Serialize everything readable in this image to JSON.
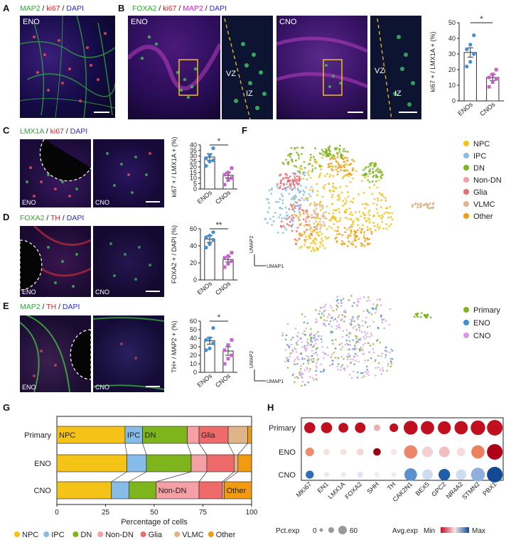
{
  "panels": {
    "A": {
      "label": "A",
      "stain": [
        {
          "t": "MAP2",
          "c": "#2bb02b"
        },
        {
          "t": " / ",
          "c": "#111"
        },
        {
          "t": "ki67",
          "c": "#e02020"
        },
        {
          "t": " / ",
          "c": "#111"
        },
        {
          "t": "DAPI",
          "c": "#2a2ad8"
        }
      ],
      "img_tag": "ENO"
    },
    "B": {
      "label": "B",
      "stain": [
        {
          "t": "FOXA2",
          "c": "#2bb02b"
        },
        {
          "t": " / ",
          "c": "#111"
        },
        {
          "t": "ki67",
          "c": "#e02020"
        },
        {
          "t": " / ",
          "c": "#111"
        },
        {
          "t": "MAP2",
          "c": "#d020d0"
        },
        {
          "t": " / ",
          "c": "#111"
        },
        {
          "t": "DAPI",
          "c": "#2a2ad8"
        }
      ],
      "img_tags": [
        "ENO",
        "CNO"
      ],
      "zones": [
        "VZ",
        "IZ"
      ]
    },
    "C": {
      "label": "C",
      "stain": [
        {
          "t": "LMX1A",
          "c": "#2bb02b"
        },
        {
          "t": " / ",
          "c": "#111"
        },
        {
          "t": "ki67",
          "c": "#e02020"
        },
        {
          "t": " / ",
          "c": "#111"
        },
        {
          "t": "DAPI",
          "c": "#2a2ad8"
        }
      ],
      "img_tags": [
        "ENO",
        "CNO"
      ]
    },
    "D": {
      "label": "D",
      "stain": [
        {
          "t": "FOXA2",
          "c": "#2bb02b"
        },
        {
          "t": " / ",
          "c": "#111"
        },
        {
          "t": "TH",
          "c": "#e02020"
        },
        {
          "t": " / ",
          "c": "#111"
        },
        {
          "t": "DAPI",
          "c": "#2a2ad8"
        }
      ],
      "img_tags": [
        "ENO",
        "CNO"
      ]
    },
    "E": {
      "label": "E",
      "stain": [
        {
          "t": "MAP2",
          "c": "#2bb02b"
        },
        {
          "t": " / ",
          "c": "#111"
        },
        {
          "t": "TH",
          "c": "#e02020"
        },
        {
          "t": " / ",
          "c": "#111"
        },
        {
          "t": "DAPI",
          "c": "#2a2ad8"
        }
      ],
      "img_tags": [
        "ENO",
        "CNO"
      ]
    },
    "F": {
      "label": "F",
      "umap_x": "UMAP1",
      "umap_y": "UMAP2"
    },
    "G": {
      "label": "G"
    },
    "H": {
      "label": "H"
    }
  },
  "chart_data": [
    {
      "id": "B",
      "type": "bar",
      "categories": [
        "ENOs",
        "CNOs"
      ],
      "ylabel": "ki67 + / LMX1A + (%)",
      "ylim": [
        0,
        50
      ],
      "yticks": [
        0,
        10,
        20,
        30,
        40,
        50
      ],
      "values": [
        31,
        15
      ],
      "errors": [
        3,
        2
      ],
      "points": [
        [
          22,
          25,
          30,
          33,
          36,
          42
        ],
        [
          9,
          12,
          14,
          15,
          17,
          20
        ]
      ],
      "sig": "*",
      "colors": [
        "#3d8fd6",
        "#c85fcf"
      ]
    },
    {
      "id": "C",
      "type": "bar",
      "categories": [
        "ENOs",
        "CNOs"
      ],
      "ylabel": "ki67 + / LMX1A + (%)",
      "ylim": [
        0,
        40
      ],
      "yticks": [
        0,
        5,
        10,
        15,
        20,
        25,
        30,
        35,
        40
      ],
      "values": [
        29,
        12.5
      ],
      "errors": [
        3,
        2.5
      ],
      "points": [
        [
          21,
          25,
          26,
          28,
          31,
          37
        ],
        [
          4,
          8,
          10,
          13,
          15,
          19
        ]
      ],
      "sig": "*",
      "colors": [
        "#3d8fd6",
        "#c85fcf"
      ]
    },
    {
      "id": "D",
      "type": "bar",
      "categories": [
        "ENOs",
        "CNOs"
      ],
      "ylabel": "FOXA2 + / DAPI (%)",
      "ylim": [
        0,
        60
      ],
      "yticks": [
        0,
        20,
        40,
        60
      ],
      "values": [
        48,
        24
      ],
      "errors": [
        4,
        3
      ],
      "points": [
        [
          38,
          42,
          47,
          50,
          52,
          56
        ],
        [
          15,
          19,
          22,
          26,
          28,
          32
        ]
      ],
      "sig": "**",
      "colors": [
        "#3d8fd6",
        "#c85fcf"
      ]
    },
    {
      "id": "E",
      "type": "bar",
      "categories": [
        "ENOs",
        "CNOs"
      ],
      "ylabel": "TH+ / MAP2 + (%)",
      "ylim": [
        0,
        60
      ],
      "yticks": [
        0,
        10,
        20,
        30,
        40,
        50,
        60
      ],
      "values": [
        37,
        25
      ],
      "errors": [
        4,
        5
      ],
      "points": [
        [
          26,
          28,
          34,
          38,
          40,
          52
        ],
        [
          10,
          16,
          20,
          26,
          32,
          38
        ]
      ],
      "sig": "*",
      "colors": [
        "#3d8fd6",
        "#c85fcf"
      ]
    },
    {
      "id": "F-top",
      "type": "scatter",
      "legend": [
        {
          "name": "NPC",
          "color": "#f5c218"
        },
        {
          "name": "IPC",
          "color": "#86bce8"
        },
        {
          "name": "DN",
          "color": "#7fb51c"
        },
        {
          "name": "Non-DN",
          "color": "#f4a0a4"
        },
        {
          "name": "Glia",
          "color": "#ef6a6a"
        },
        {
          "name": "VLMC",
          "color": "#e0b489"
        },
        {
          "name": "Other",
          "color": "#f29a10"
        }
      ]
    },
    {
      "id": "F-bottom",
      "type": "scatter",
      "legend": [
        {
          "name": "Primary",
          "color": "#7fb51c"
        },
        {
          "name": "ENO",
          "color": "#3d8fd6"
        },
        {
          "name": "CNO",
          "color": "#d59ae0"
        }
      ]
    },
    {
      "id": "G",
      "type": "bar",
      "orientation": "horizontal-stacked",
      "xlabel": "Percentage of cells",
      "xlim": [
        0,
        100
      ],
      "xticks": [
        0,
        25,
        50,
        75,
        100
      ],
      "categories": [
        "Primary",
        "ENO",
        "CNO"
      ],
      "series": [
        {
          "name": "NPC",
          "color": "#f5c218",
          "values": [
            35,
            36,
            28
          ]
        },
        {
          "name": "IPC",
          "color": "#86bce8",
          "values": [
            9,
            10,
            9
          ]
        },
        {
          "name": "DN",
          "color": "#7fb51c",
          "values": [
            23,
            23,
            14
          ]
        },
        {
          "name": "Non-DN",
          "color": "#f4a0a4",
          "values": [
            6,
            8,
            22
          ]
        },
        {
          "name": "Glia",
          "color": "#ef6a6a",
          "values": [
            15,
            14,
            12
          ]
        },
        {
          "name": "VLMC",
          "color": "#e0b489",
          "values": [
            10,
            2,
            1
          ]
        },
        {
          "name": "Other",
          "color": "#f29a10",
          "values": [
            2,
            7,
            14
          ]
        }
      ],
      "inbar_labels": [
        {
          "row": 0,
          "series": "NPC",
          "text": "NPC"
        },
        {
          "row": 0,
          "series": "IPC",
          "text": "IPC"
        },
        {
          "row": 0,
          "series": "DN",
          "text": "DN"
        },
        {
          "row": 0,
          "series": "Glia",
          "text": "Glia"
        },
        {
          "row": 2,
          "series": "Non-DN",
          "text": "Non-DN"
        },
        {
          "row": 2,
          "series": "Other",
          "text": "Other"
        }
      ]
    },
    {
      "id": "H",
      "type": "dot",
      "genes": [
        "MKI67",
        "EN1",
        "LMX1A",
        "FOXA2",
        "SHH",
        "TH",
        "CAK2N1",
        "BEX5",
        "GPC2",
        "NR4A2",
        "STMN2",
        "PBX1"
      ],
      "rows": [
        {
          "name": "Primary",
          "pct": [
            25,
            25,
            18,
            22,
            5,
            12,
            45,
            40,
            38,
            40,
            50,
            60
          ],
          "color": [
            "#c01020",
            "#c01020",
            "#c01020",
            "#c01020",
            "#e8b0b0",
            "#c01020",
            "#c01020",
            "#c01020",
            "#c01020",
            "#c01020",
            "#c01020",
            "#c01020"
          ]
        },
        {
          "name": "ENO",
          "pct": [
            12,
            4,
            4,
            6,
            8,
            4,
            40,
            22,
            22,
            12,
            40,
            60
          ],
          "color": [
            "#ef8a6a",
            "#f8e0dc",
            "#f6e0e0",
            "#f4d6d6",
            "#9c0010",
            "#f8e6e6",
            "#ec8668",
            "#f4d0d0",
            "#f0c0c0",
            "#f6dcdc",
            "#ec8060",
            "#b00018"
          ]
        },
        {
          "name": "CNO",
          "pct": [
            10,
            2,
            2,
            4,
            2,
            2,
            35,
            22,
            28,
            20,
            45,
            60
          ],
          "color": [
            "#2e6db8",
            "#eaeaf0",
            "#eaeaf0",
            "#dde6f3",
            "#f0eef0",
            "#f0eef0",
            "#5d90cf",
            "#cfdbee",
            "#1f5ea8",
            "#cfdbee",
            "#90b0dc",
            "#124a94"
          ]
        }
      ],
      "size_legend_title": "Pct.exp",
      "size_legend": [
        "0",
        "60"
      ],
      "color_legend_title": "Avg.exp",
      "color_min": "Min",
      "color_max": "Max"
    }
  ],
  "legend_bottom": [
    {
      "name": "NPC",
      "color": "#f5c218"
    },
    {
      "name": "IPC",
      "color": "#86bce8"
    },
    {
      "name": "DN",
      "color": "#7fb51c"
    },
    {
      "name": "Non-DN",
      "color": "#f4a0a4"
    },
    {
      "name": "Glia",
      "color": "#ef6a6a"
    },
    {
      "name": "VLMC",
      "color": "#e0b489"
    },
    {
      "name": "Other",
      "color": "#f29a10"
    }
  ]
}
